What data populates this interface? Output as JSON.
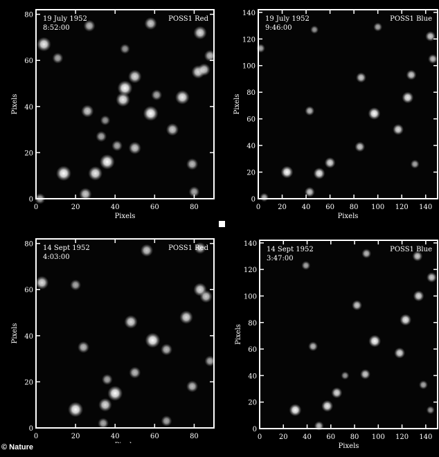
{
  "credit": "© Nature",
  "panels": [
    {
      "date": "19 July 1952",
      "time": "8:52:00",
      "label": "POSS1 Red",
      "xlabel": "Pixels",
      "ylabel": "Pixels",
      "xlim": [
        0,
        90
      ],
      "ylim": [
        0,
        82
      ],
      "xticks": [
        0,
        20,
        40,
        60,
        80
      ],
      "yticks": [
        0,
        20,
        40,
        60,
        80
      ],
      "stars": [
        [
          14,
          11,
          1
        ],
        [
          36,
          16,
          1
        ],
        [
          30,
          11,
          0.9
        ],
        [
          45,
          48,
          1
        ],
        [
          44,
          43,
          0.9
        ],
        [
          58,
          37,
          1
        ],
        [
          50,
          53,
          0.8
        ],
        [
          74,
          44,
          0.9
        ],
        [
          82,
          55,
          0.8
        ],
        [
          85,
          56,
          0.7
        ],
        [
          83,
          72,
          0.8
        ],
        [
          4,
          67,
          0.9
        ],
        [
          58,
          76,
          0.7
        ],
        [
          27,
          75,
          0.6
        ],
        [
          26,
          38,
          0.7
        ],
        [
          69,
          30,
          0.7
        ],
        [
          50,
          22,
          0.7
        ],
        [
          41,
          23,
          0.5
        ],
        [
          25,
          2,
          0.7
        ],
        [
          79,
          15,
          0.6
        ],
        [
          88,
          62,
          0.6
        ],
        [
          11,
          61,
          0.5
        ],
        [
          33,
          27,
          0.5
        ],
        [
          61,
          45,
          0.5
        ],
        [
          35,
          34,
          0.4
        ],
        [
          80,
          3,
          0.5
        ],
        [
          45,
          65,
          0.4
        ],
        [
          2,
          0,
          0.5
        ]
      ]
    },
    {
      "date": "19 July 1952",
      "time": "9:46:00",
      "label": "POSS1 Blue",
      "xlabel": "Pixels",
      "ylabel": "Pixels",
      "xlim": [
        0,
        150
      ],
      "ylim": [
        0,
        142
      ],
      "xticks": [
        0,
        20,
        40,
        60,
        80,
        100,
        120,
        140
      ],
      "yticks": [
        0,
        20,
        40,
        60,
        80,
        100,
        120,
        140
      ],
      "stars": [
        [
          24,
          20,
          1
        ],
        [
          51,
          19,
          0.9
        ],
        [
          60,
          27,
          0.8
        ],
        [
          97,
          64,
          1
        ],
        [
          125,
          76,
          0.9
        ],
        [
          117,
          52,
          0.8
        ],
        [
          85,
          39,
          0.7
        ],
        [
          86,
          91,
          0.7
        ],
        [
          128,
          93,
          0.7
        ],
        [
          144,
          122,
          0.7
        ],
        [
          43,
          66,
          0.6
        ],
        [
          43,
          5,
          0.7
        ],
        [
          131,
          26,
          0.5
        ],
        [
          146,
          105,
          0.6
        ],
        [
          100,
          129,
          0.5
        ],
        [
          5,
          1,
          0.5
        ],
        [
          2,
          113,
          0.5
        ],
        [
          47,
          127,
          0.4
        ]
      ]
    },
    {
      "date": "14 Sept 1952",
      "time": "4:03:00",
      "label": "POSS1 Red",
      "xlabel": "Pixels",
      "ylabel": "Pixels",
      "xlim": [
        0,
        90
      ],
      "ylim": [
        0,
        82
      ],
      "xticks": [
        0,
        20,
        40,
        60,
        80
      ],
      "yticks": [
        0,
        20,
        40,
        60,
        80
      ],
      "stars": [
        [
          20,
          8,
          1
        ],
        [
          40,
          15,
          1
        ],
        [
          35,
          10,
          0.8
        ],
        [
          59,
          38,
          1
        ],
        [
          48,
          46,
          0.8
        ],
        [
          76,
          48,
          0.8
        ],
        [
          83,
          60,
          0.8
        ],
        [
          86,
          57,
          0.7
        ],
        [
          56,
          77,
          0.7
        ],
        [
          83,
          78,
          0.6
        ],
        [
          3,
          63,
          0.8
        ],
        [
          24,
          35,
          0.6
        ],
        [
          50,
          24,
          0.6
        ],
        [
          66,
          34,
          0.6
        ],
        [
          36,
          21,
          0.5
        ],
        [
          79,
          18,
          0.6
        ],
        [
          20,
          62,
          0.5
        ],
        [
          34,
          2,
          0.5
        ],
        [
          66,
          3,
          0.5
        ],
        [
          88,
          29,
          0.5
        ]
      ]
    },
    {
      "date": "14 Sept 1952",
      "time": "3:47:00",
      "label": "POSS1 Blue",
      "xlabel": "Pixels",
      "ylabel": "Pixels",
      "xlim": [
        0,
        150
      ],
      "ylim": [
        0,
        142
      ],
      "xticks": [
        0,
        20,
        40,
        60,
        80,
        100,
        120,
        140
      ],
      "yticks": [
        0,
        20,
        40,
        60,
        80,
        100,
        120,
        140
      ],
      "stars": [
        [
          30,
          14,
          1
        ],
        [
          57,
          17,
          0.9
        ],
        [
          65,
          27,
          0.8
        ],
        [
          97,
          66,
          1
        ],
        [
          123,
          82,
          0.9
        ],
        [
          118,
          57,
          0.8
        ],
        [
          89,
          41,
          0.7
        ],
        [
          82,
          93,
          0.7
        ],
        [
          134,
          100,
          0.8
        ],
        [
          145,
          114,
          0.7
        ],
        [
          133,
          130,
          0.7
        ],
        [
          90,
          132,
          0.6
        ],
        [
          45,
          62,
          0.6
        ],
        [
          50,
          2,
          0.6
        ],
        [
          138,
          33,
          0.5
        ],
        [
          39,
          123,
          0.5
        ],
        [
          72,
          40,
          0.4
        ],
        [
          144,
          14,
          0.4
        ]
      ]
    }
  ]
}
